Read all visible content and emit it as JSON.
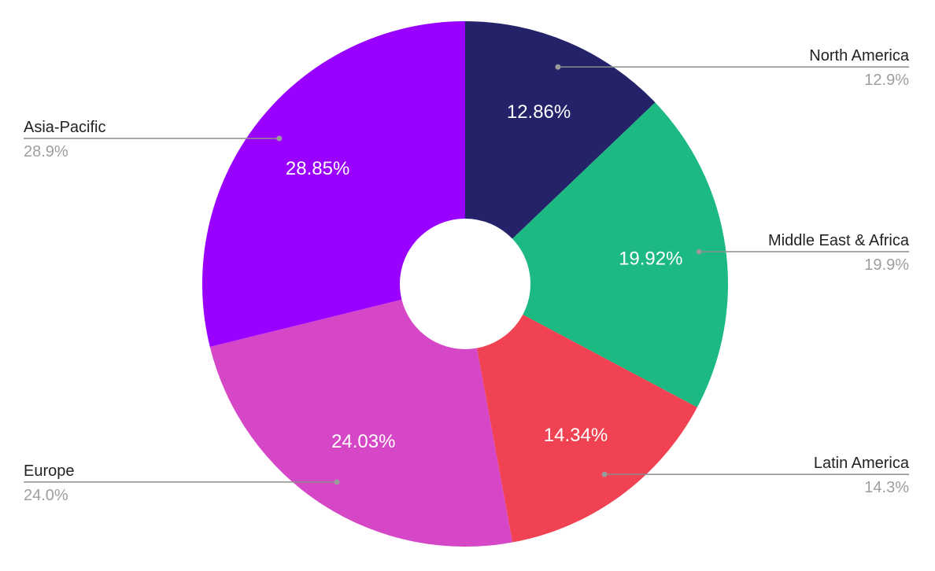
{
  "chart_data": {
    "type": "pie",
    "donut": true,
    "start": "top (12 o'clock), clockwise",
    "slices": [
      {
        "name": "North America",
        "value": 12.86,
        "label": "12.86%",
        "callout_pct": "12.9%",
        "color": "#24236a",
        "callout_side": "right"
      },
      {
        "name": "Middle East & Africa",
        "value": 19.92,
        "label": "19.92%",
        "callout_pct": "19.9%",
        "color": "#1cb982",
        "callout_side": "right"
      },
      {
        "name": "Latin America",
        "value": 14.34,
        "label": "14.34%",
        "callout_pct": "14.3%",
        "color": "#f04252",
        "callout_side": "right"
      },
      {
        "name": "Europe",
        "value": 24.03,
        "label": "24.03%",
        "callout_pct": "24.0%",
        "color": "#d647c8",
        "callout_side": "left"
      },
      {
        "name": "Asia-Pacific",
        "value": 28.85,
        "label": "28.85%",
        "callout_pct": "28.9%",
        "color": "#9900ff",
        "callout_side": "left"
      }
    ],
    "legend": "callouts beside slices"
  }
}
